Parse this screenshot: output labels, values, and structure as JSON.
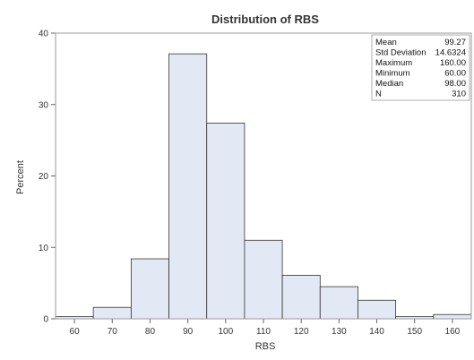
{
  "chart_data": {
    "type": "bar",
    "title": "Distribution of RBS",
    "xlabel": "RBS",
    "ylabel": "Percent",
    "xlim": [
      55,
      165
    ],
    "ylim": [
      0,
      40
    ],
    "bin_width": 10,
    "bins": [
      {
        "center": 60,
        "value": 0.3
      },
      {
        "center": 70,
        "value": 1.6
      },
      {
        "center": 80,
        "value": 8.4
      },
      {
        "center": 90,
        "value": 37.1
      },
      {
        "center": 100,
        "value": 27.4
      },
      {
        "center": 110,
        "value": 11.0
      },
      {
        "center": 120,
        "value": 6.1
      },
      {
        "center": 130,
        "value": 4.5
      },
      {
        "center": 140,
        "value": 2.6
      },
      {
        "center": 150,
        "value": 0.3
      },
      {
        "center": 160,
        "value": 0.6
      }
    ],
    "x_ticks": [
      "60",
      "70",
      "80",
      "90",
      "100",
      "110",
      "120",
      "130",
      "140",
      "150",
      "160"
    ],
    "y_ticks": [
      "0",
      "10",
      "20",
      "30",
      "40"
    ],
    "grid": false,
    "bar_color": "#e3e9f4",
    "bar_stroke": "#333333",
    "stats_box": {
      "placement": "top-right",
      "rows": [
        {
          "label": "Mean",
          "value": "99.27"
        },
        {
          "label": "Std Deviation",
          "value": "14.6324"
        },
        {
          "label": "Maximum",
          "value": "160.00"
        },
        {
          "label": "Minimum",
          "value": "60.00"
        },
        {
          "label": "Median",
          "value": "98.00"
        },
        {
          "label": "N",
          "value": "310"
        }
      ]
    }
  }
}
